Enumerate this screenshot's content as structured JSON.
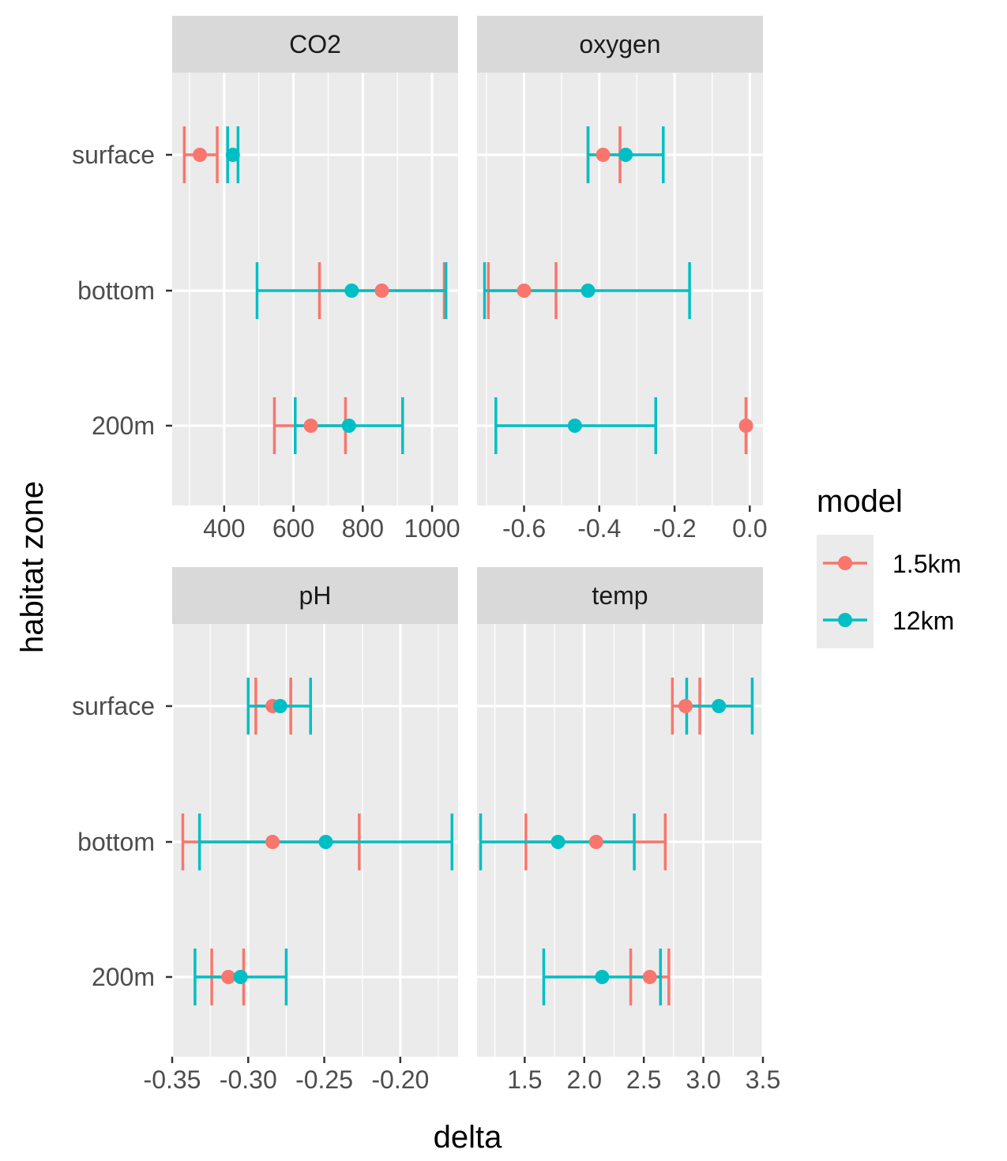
{
  "chart_data": {
    "type": "errorbar",
    "xlabel": "delta",
    "ylabel": "habitat zone",
    "categories": [
      "surface",
      "bottom",
      "200m"
    ],
    "legend": {
      "title": "model",
      "placement": "right",
      "items": [
        {
          "label": "1.5km",
          "color": "#F8766D"
        },
        {
          "label": "12km",
          "color": "#00BFC4"
        }
      ]
    },
    "panels": [
      {
        "title": "CO2",
        "xlim": [
          250,
          1075
        ],
        "xticks": [
          400,
          600,
          800,
          1000
        ],
        "xtick_labels": [
          "400",
          "600",
          "800",
          "1000"
        ],
        "show_xticks": true,
        "series": [
          {
            "name": "1.5km",
            "points": [
              {
                "y": "surface",
                "x": 330,
                "lo": 285,
                "hi": 380
              },
              {
                "y": "bottom",
                "x": 855,
                "lo": 675,
                "hi": 1035
              },
              {
                "y": "200m",
                "x": 650,
                "lo": 545,
                "hi": 750
              }
            ]
          },
          {
            "name": "12km",
            "points": [
              {
                "y": "surface",
                "x": 425,
                "lo": 410,
                "hi": 440
              },
              {
                "y": "bottom",
                "x": 768,
                "lo": 495,
                "hi": 1040
              },
              {
                "y": "200m",
                "x": 760,
                "lo": 605,
                "hi": 915
              }
            ]
          }
        ]
      },
      {
        "title": "oxygen",
        "xlim": [
          -0.725,
          0.035
        ],
        "xticks": [
          -0.6,
          -0.4,
          -0.2,
          0.0
        ],
        "xtick_labels": [
          "-0.6",
          "-0.4",
          "-0.2",
          "0.0"
        ],
        "show_xticks": true,
        "series": [
          {
            "name": "1.5km",
            "points": [
              {
                "y": "surface",
                "x": -0.39,
                "lo": -0.43,
                "hi": -0.345
              },
              {
                "y": "bottom",
                "x": -0.6,
                "lo": -0.695,
                "hi": -0.515
              },
              {
                "y": "200m",
                "x": -0.01,
                "lo": -0.01,
                "hi": -0.01
              }
            ]
          },
          {
            "name": "12km",
            "points": [
              {
                "y": "surface",
                "x": -0.33,
                "lo": -0.43,
                "hi": -0.23
              },
              {
                "y": "bottom",
                "x": -0.43,
                "lo": -0.705,
                "hi": -0.16
              },
              {
                "y": "200m",
                "x": -0.465,
                "lo": -0.675,
                "hi": -0.25
              }
            ]
          }
        ]
      },
      {
        "title": "pH",
        "xlim": [
          -0.35,
          -0.162
        ],
        "xticks": [
          -0.35,
          -0.3,
          -0.25,
          -0.2
        ],
        "xtick_labels": [
          "-0.35",
          "-0.30",
          "-0.25",
          "-0.20"
        ],
        "show_xticks": true,
        "series": [
          {
            "name": "1.5km",
            "points": [
              {
                "y": "surface",
                "x": -0.284,
                "lo": -0.295,
                "hi": -0.272
              },
              {
                "y": "bottom",
                "x": -0.284,
                "lo": -0.343,
                "hi": -0.227
              },
              {
                "y": "200m",
                "x": -0.313,
                "lo": -0.324,
                "hi": -0.303
              }
            ]
          },
          {
            "name": "12km",
            "points": [
              {
                "y": "surface",
                "x": -0.279,
                "lo": -0.3,
                "hi": -0.259
              },
              {
                "y": "bottom",
                "x": -0.249,
                "lo": -0.332,
                "hi": -0.166
              },
              {
                "y": "200m",
                "x": -0.305,
                "lo": -0.335,
                "hi": -0.275
              }
            ]
          }
        ]
      },
      {
        "title": "temp",
        "xlim": [
          1.1,
          3.5
        ],
        "xticks": [
          1.5,
          2.0,
          2.5,
          3.0,
          3.5
        ],
        "xtick_labels": [
          "1.5",
          "2.0",
          "2.5",
          "3.0",
          "3.5"
        ],
        "show_xticks": true,
        "series": [
          {
            "name": "1.5km",
            "points": [
              {
                "y": "surface",
                "x": 2.85,
                "lo": 2.74,
                "hi": 2.97
              },
              {
                "y": "bottom",
                "x": 2.1,
                "lo": 1.51,
                "hi": 2.68
              },
              {
                "y": "200m",
                "x": 2.55,
                "lo": 2.39,
                "hi": 2.71
              }
            ]
          },
          {
            "name": "12km",
            "points": [
              {
                "y": "surface",
                "x": 3.13,
                "lo": 2.86,
                "hi": 3.41
              },
              {
                "y": "bottom",
                "x": 1.78,
                "lo": 1.13,
                "hi": 2.42
              },
              {
                "y": "200m",
                "x": 2.15,
                "lo": 1.66,
                "hi": 2.64
              }
            ]
          }
        ]
      }
    ]
  }
}
